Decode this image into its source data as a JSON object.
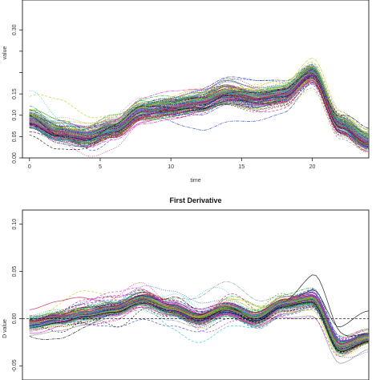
{
  "palette": [
    "#000000",
    "#d4145a",
    "#1ea81e",
    "#1f3dd1",
    "#19c3c8",
    "#d61fd1",
    "#c9c71a",
    "#8c8c8c"
  ],
  "chart_data": [
    {
      "type": "line",
      "title": "",
      "xlabel": "time",
      "ylabel": "value",
      "xlim": [
        -0.5,
        24
      ],
      "ylim": [
        0.0,
        0.37
      ],
      "x_ticks": [
        0,
        5,
        10,
        15,
        20
      ],
      "y_ticks": [
        0.0,
        0.05,
        0.1,
        0.15,
        0.2,
        0.25,
        0.3
      ],
      "x_tick_labels": [
        "0",
        "5",
        "10",
        "15",
        "20"
      ],
      "y_tick_labels": [
        "0.00",
        "0.05",
        "0.10",
        "0.15",
        "",
        "",
        "0.30"
      ],
      "series_count": 140,
      "mean_curve": {
        "x": [
          0,
          2,
          4,
          6,
          8,
          10,
          12,
          14,
          16,
          18,
          20,
          22,
          24
        ],
        "y": [
          0.09,
          0.06,
          0.05,
          0.07,
          0.11,
          0.12,
          0.13,
          0.15,
          0.14,
          0.15,
          0.2,
          0.08,
          0.04
        ]
      },
      "grid": false,
      "legend": false
    },
    {
      "type": "line",
      "title": "First Derivative",
      "xlabel": "",
      "ylabel": "D value",
      "xlim": [
        -0.5,
        24
      ],
      "ylim": [
        -0.065,
        0.115
      ],
      "x_ticks": [
        0,
        5,
        10,
        15,
        20
      ],
      "y_ticks": [
        -0.05,
        0.0,
        0.05,
        0.1
      ],
      "y_tick_labels": [
        "-0.05",
        "0.00",
        "0.05",
        "0.10"
      ],
      "reference_line": 0,
      "series_count": 140,
      "mean_curve": {
        "x": [
          0,
          2,
          4,
          6,
          8,
          10,
          12,
          14,
          16,
          18,
          20,
          22,
          24
        ],
        "y": [
          -0.005,
          0.0,
          0.005,
          0.01,
          0.02,
          0.01,
          0.0,
          0.01,
          0.0,
          0.015,
          0.02,
          -0.03,
          -0.02
        ]
      },
      "grid": false,
      "legend": false
    }
  ]
}
